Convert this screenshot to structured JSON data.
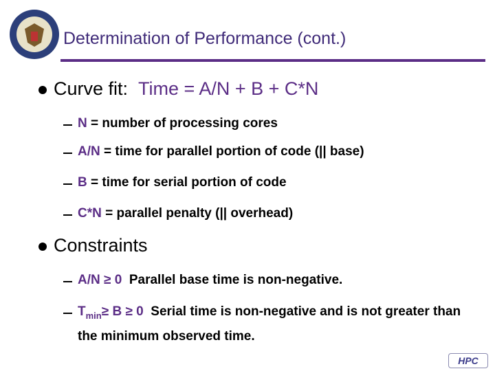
{
  "header": {
    "title": "Determination of Performance (cont.)"
  },
  "bullets": [
    {
      "label": "Curve fit:",
      "formula": "Time = A/N + B + C*N",
      "items": [
        {
          "term": "N",
          "text": "= number of processing cores"
        },
        {
          "term": "A/N",
          "text": "= time for parallel portion of code (|| base)"
        },
        {
          "term": "B",
          "text": "= time for serial portion of code"
        },
        {
          "term": "C*N",
          "text": "= parallel penalty (|| overhead)"
        }
      ]
    },
    {
      "label": "Constraints",
      "items": [
        {
          "term": "A/N ≥ 0",
          "text": "Parallel base time is non-negative."
        },
        {
          "term": "T",
          "subscript": "min",
          "term2": "≥ B ≥ 0",
          "text": "Serial time is non-negative and is not greater than the minimum observed time."
        }
      ]
    }
  ],
  "footer": {
    "logo": "HPC"
  }
}
